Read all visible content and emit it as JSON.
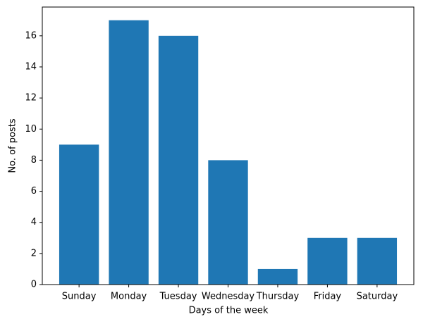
{
  "chart_data": {
    "type": "bar",
    "x_label": "Days of the week",
    "y_label": "No. of posts",
    "categories": [
      "Sunday",
      "Monday",
      "Tuesday",
      "Wednesday",
      "Thursday",
      "Friday",
      "Saturday"
    ],
    "values": [
      9,
      17,
      16,
      8,
      1,
      3,
      3
    ],
    "color": "#1f77b4",
    "ylim": [
      0,
      17.85
    ],
    "yticks": [
      0,
      2,
      4,
      6,
      8,
      10,
      12,
      14,
      16
    ],
    "grid": false
  }
}
